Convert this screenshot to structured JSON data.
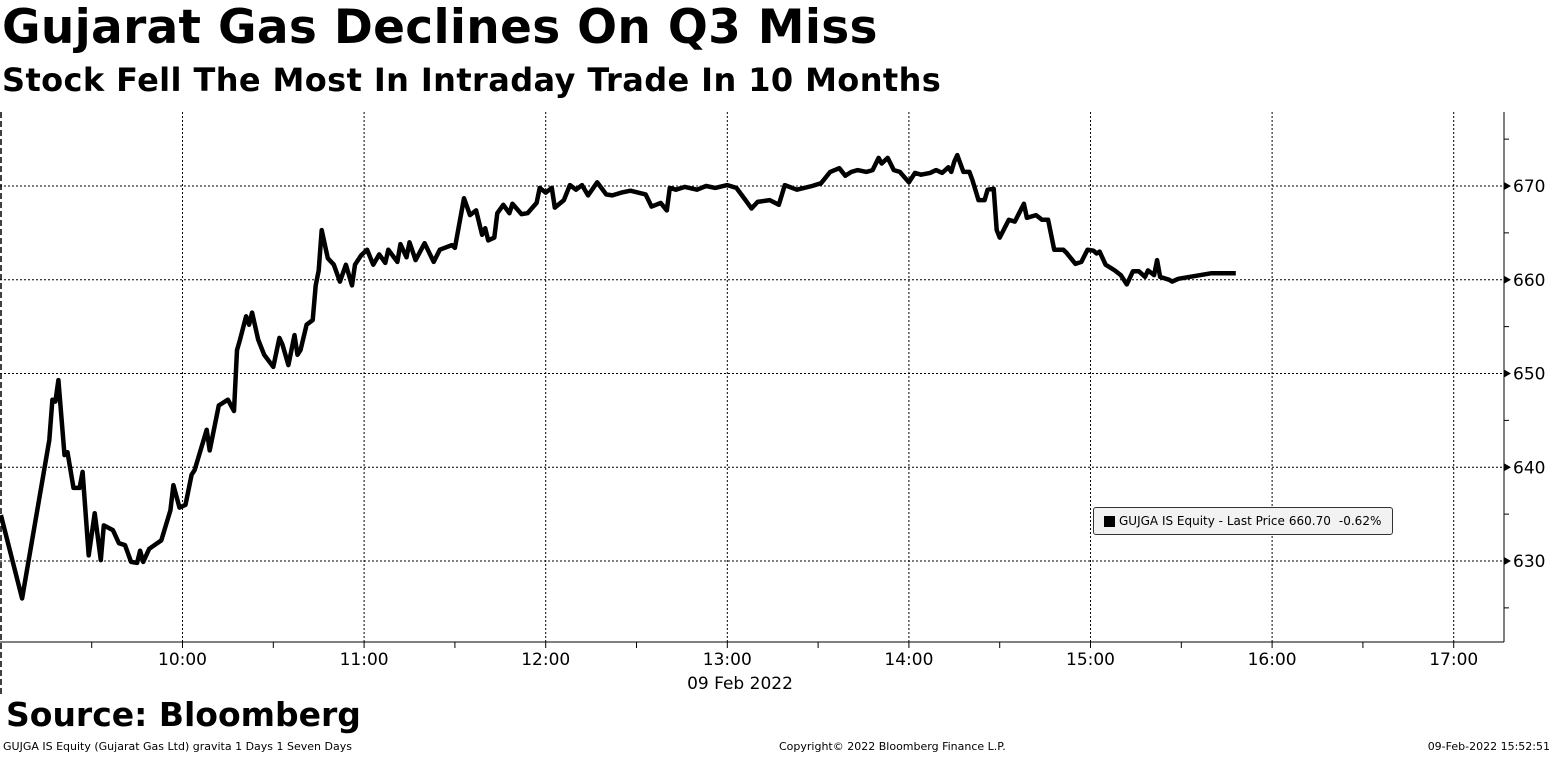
{
  "header": {
    "title": "Gujarat Gas Declines On Q3 Miss",
    "subtitle": "Stock Fell The Most In Intraday Trade In 10 Months"
  },
  "footer": {
    "source": "Source: Bloomberg",
    "security": "GUJGA IS Equity (Gujarat Gas Ltd) gravita 1 Days 1 Seven Days",
    "copyright": "Copyright© 2022 Bloomberg Finance L.P.",
    "timestamp": "09-Feb-2022 15:52:51"
  },
  "chart_data": {
    "type": "line",
    "title": "Gujarat Gas Declines On Q3 Miss",
    "subtitle": "Stock Fell The Most In Intraday Trade In 10 Months",
    "xlabel": "09 Feb 2022",
    "ylabel": "",
    "xlim": [
      "09:00",
      "17:15"
    ],
    "ylim": [
      621.4,
      677.9
    ],
    "x_ticks": [
      "10:00",
      "11:00",
      "12:00",
      "13:00",
      "14:00",
      "15:00",
      "16:00",
      "17:00"
    ],
    "y_ticks": [
      630,
      640,
      650,
      660,
      670
    ],
    "y_axis_side": "right",
    "grid": true,
    "legend": {
      "placement": "bottom-right",
      "color_swatch": "#000000",
      "label": "GUJGA IS Equity - Last Price",
      "last_price": "660.70",
      "change": "-0.62%"
    },
    "series": [
      {
        "name": "GUJGA IS Equity - Last Price",
        "color": "#000000",
        "points": [
          [
            "09:00",
            634.9
          ],
          [
            "09:07",
            626.0
          ],
          [
            "09:16",
            642.9
          ],
          [
            "09:17",
            647.2
          ],
          [
            "09:18",
            647.0
          ],
          [
            "09:19",
            649.3
          ],
          [
            "09:21",
            641.3
          ],
          [
            "09:22",
            641.6
          ],
          [
            "09:24",
            637.8
          ],
          [
            "09:26",
            637.8
          ],
          [
            "09:27",
            639.5
          ],
          [
            "09:29",
            630.6
          ],
          [
            "09:31",
            635.1
          ],
          [
            "09:33",
            630.1
          ],
          [
            "09:34",
            633.8
          ],
          [
            "09:37",
            633.3
          ],
          [
            "09:39",
            631.9
          ],
          [
            "09:41",
            631.7
          ],
          [
            "09:43",
            629.9
          ],
          [
            "09:45",
            629.8
          ],
          [
            "09:46",
            631.1
          ],
          [
            "09:47",
            629.9
          ],
          [
            "09:49",
            631.3
          ],
          [
            "09:53",
            632.2
          ],
          [
            "09:56",
            635.4
          ],
          [
            "09:57",
            638.1
          ],
          [
            "09:59",
            635.7
          ],
          [
            "10:01",
            636.0
          ],
          [
            "10:03",
            639.2
          ],
          [
            "10:04",
            639.7
          ],
          [
            "10:08",
            644.0
          ],
          [
            "10:09",
            641.8
          ],
          [
            "10:12",
            646.6
          ],
          [
            "10:13",
            646.8
          ],
          [
            "10:15",
            647.2
          ],
          [
            "10:17",
            646.0
          ],
          [
            "10:18",
            652.5
          ],
          [
            "10:19",
            653.6
          ],
          [
            "10:21",
            656.1
          ],
          [
            "10:22",
            655.2
          ],
          [
            "10:23",
            656.5
          ],
          [
            "10:25",
            653.6
          ],
          [
            "10:27",
            652.0
          ],
          [
            "10:30",
            650.7
          ],
          [
            "10:32",
            653.8
          ],
          [
            "10:33",
            653.1
          ],
          [
            "10:35",
            650.9
          ],
          [
            "10:37",
            654.1
          ],
          [
            "10:38",
            652.0
          ],
          [
            "10:39",
            652.5
          ],
          [
            "10:41",
            655.2
          ],
          [
            "10:43",
            655.7
          ],
          [
            "10:44",
            659.4
          ],
          [
            "10:45",
            661.0
          ],
          [
            "10:46",
            665.3
          ],
          [
            "10:48",
            662.3
          ],
          [
            "10:50",
            661.6
          ],
          [
            "10:52",
            659.8
          ],
          [
            "10:54",
            661.6
          ],
          [
            "10:56",
            659.4
          ],
          [
            "10:57",
            661.6
          ],
          [
            "10:59",
            662.6
          ],
          [
            "11:01",
            663.2
          ],
          [
            "11:03",
            661.6
          ],
          [
            "11:05",
            662.7
          ],
          [
            "11:07",
            661.8
          ],
          [
            "11:08",
            663.2
          ],
          [
            "11:11",
            661.9
          ],
          [
            "11:12",
            663.8
          ],
          [
            "11:14",
            662.4
          ],
          [
            "11:15",
            664.0
          ],
          [
            "11:17",
            662.1
          ],
          [
            "11:20",
            663.9
          ],
          [
            "11:23",
            661.9
          ],
          [
            "11:25",
            663.2
          ],
          [
            "11:29",
            663.7
          ],
          [
            "11:30",
            663.4
          ],
          [
            "11:33",
            668.7
          ],
          [
            "11:35",
            666.9
          ],
          [
            "11:37",
            667.4
          ],
          [
            "11:39",
            664.8
          ],
          [
            "11:40",
            665.5
          ],
          [
            "11:41",
            664.2
          ],
          [
            "11:43",
            664.5
          ],
          [
            "11:44",
            667.1
          ],
          [
            "11:46",
            668.0
          ],
          [
            "11:48",
            667.1
          ],
          [
            "11:49",
            668.1
          ],
          [
            "11:52",
            667.0
          ],
          [
            "11:54",
            667.1
          ],
          [
            "11:57",
            668.2
          ],
          [
            "11:58",
            669.8
          ],
          [
            "12:00",
            669.3
          ],
          [
            "12:02",
            669.8
          ],
          [
            "12:03",
            667.7
          ],
          [
            "12:06",
            668.5
          ],
          [
            "12:08",
            670.1
          ],
          [
            "12:10",
            669.6
          ],
          [
            "12:12",
            670.1
          ],
          [
            "12:14",
            669.0
          ],
          [
            "12:17",
            670.4
          ],
          [
            "12:20",
            669.1
          ],
          [
            "12:22",
            669.0
          ],
          [
            "12:25",
            669.3
          ],
          [
            "12:28",
            669.5
          ],
          [
            "12:33",
            669.1
          ],
          [
            "12:35",
            667.8
          ],
          [
            "12:38",
            668.2
          ],
          [
            "12:40",
            667.4
          ],
          [
            "12:41",
            669.8
          ],
          [
            "12:43",
            669.6
          ],
          [
            "12:46",
            669.9
          ],
          [
            "12:50",
            669.6
          ],
          [
            "12:53",
            670.0
          ],
          [
            "12:56",
            669.8
          ],
          [
            "13:00",
            670.1
          ],
          [
            "13:03",
            669.8
          ],
          [
            "13:06",
            668.5
          ],
          [
            "13:08",
            667.6
          ],
          [
            "13:10",
            668.3
          ],
          [
            "13:14",
            668.5
          ],
          [
            "13:17",
            668.0
          ],
          [
            "13:19",
            670.1
          ],
          [
            "13:23",
            669.6
          ],
          [
            "13:28",
            670.0
          ],
          [
            "13:31",
            670.3
          ],
          [
            "13:34",
            671.5
          ],
          [
            "13:37",
            671.9
          ],
          [
            "13:39",
            671.1
          ],
          [
            "13:41",
            671.5
          ],
          [
            "13:43",
            671.7
          ],
          [
            "13:46",
            671.5
          ],
          [
            "13:48",
            671.7
          ],
          [
            "13:50",
            673.0
          ],
          [
            "13:51",
            672.4
          ],
          [
            "13:53",
            673.0
          ],
          [
            "13:55",
            671.7
          ],
          [
            "13:57",
            671.5
          ],
          [
            "14:00",
            670.4
          ],
          [
            "14:02",
            671.4
          ],
          [
            "14:04",
            671.2
          ],
          [
            "14:07",
            671.4
          ],
          [
            "14:09",
            671.7
          ],
          [
            "14:11",
            671.4
          ],
          [
            "14:13",
            672.0
          ],
          [
            "14:14",
            671.5
          ],
          [
            "14:15",
            672.6
          ],
          [
            "14:16",
            673.3
          ],
          [
            "14:18",
            671.5
          ],
          [
            "14:20",
            671.5
          ],
          [
            "14:21",
            670.6
          ],
          [
            "14:23",
            668.5
          ],
          [
            "14:25",
            668.5
          ],
          [
            "14:26",
            669.6
          ],
          [
            "14:28",
            669.7
          ],
          [
            "14:29",
            665.3
          ],
          [
            "14:30",
            664.5
          ],
          [
            "14:33",
            666.4
          ],
          [
            "14:35",
            666.2
          ],
          [
            "14:38",
            668.1
          ],
          [
            "14:39",
            666.6
          ],
          [
            "14:42",
            666.9
          ],
          [
            "14:44",
            666.4
          ],
          [
            "14:46",
            666.4
          ],
          [
            "14:48",
            663.2
          ],
          [
            "14:51",
            663.2
          ],
          [
            "14:52",
            662.9
          ],
          [
            "14:55",
            661.7
          ],
          [
            "14:57",
            661.9
          ],
          [
            "14:59",
            663.2
          ],
          [
            "15:01",
            663.1
          ],
          [
            "15:02",
            662.8
          ],
          [
            "15:03",
            663.0
          ],
          [
            "15:05",
            661.6
          ],
          [
            "15:08",
            661.0
          ],
          [
            "15:10",
            660.5
          ],
          [
            "15:12",
            659.5
          ],
          [
            "15:14",
            660.9
          ],
          [
            "15:16",
            660.9
          ],
          [
            "15:18",
            660.3
          ],
          [
            "15:19",
            661.0
          ],
          [
            "15:21",
            660.5
          ],
          [
            "15:22",
            662.1
          ],
          [
            "15:23",
            660.3
          ],
          [
            "15:26",
            660.0
          ],
          [
            "15:27",
            659.8
          ],
          [
            "15:29",
            660.1
          ],
          [
            "15:40",
            660.7
          ],
          [
            "15:48",
            660.7
          ]
        ]
      }
    ]
  }
}
